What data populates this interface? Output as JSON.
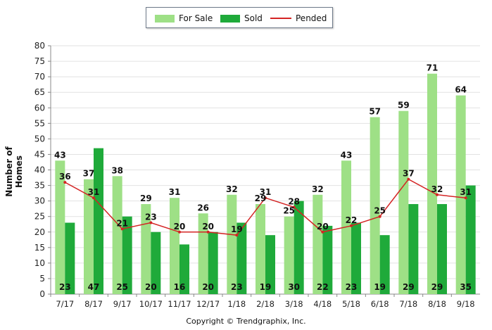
{
  "chart_data": {
    "type": "bar",
    "categories": [
      "7/17",
      "8/17",
      "9/17",
      "10/17",
      "11/17",
      "12/17",
      "1/18",
      "2/18",
      "3/18",
      "4/18",
      "5/18",
      "6/18",
      "7/18",
      "8/18",
      "9/18"
    ],
    "series": [
      {
        "name": "For Sale",
        "type": "bar",
        "color": "#9ee086",
        "values": [
          43,
          37,
          38,
          29,
          31,
          26,
          32,
          29,
          25,
          32,
          43,
          57,
          59,
          71,
          64
        ]
      },
      {
        "name": "Sold",
        "type": "bar",
        "color": "#1faa3a",
        "values": [
          23,
          47,
          25,
          20,
          16,
          20,
          23,
          19,
          30,
          22,
          23,
          19,
          29,
          29,
          35
        ]
      },
      {
        "name": "Pended",
        "type": "line",
        "color": "#d42424",
        "values": [
          36,
          31,
          21,
          23,
          20,
          20,
          19,
          31,
          28,
          20,
          22,
          25,
          37,
          32,
          31
        ]
      }
    ],
    "ylabel": "Number of Homes",
    "xlabel": "",
    "ylim": [
      0,
      80
    ],
    "yticks": [
      0,
      5,
      10,
      15,
      20,
      25,
      30,
      35,
      40,
      45,
      50,
      55,
      60,
      65,
      70,
      75,
      80
    ],
    "grid": true,
    "legend_position": "top-center",
    "footer": "Copyright © Trendgraphix, Inc."
  }
}
